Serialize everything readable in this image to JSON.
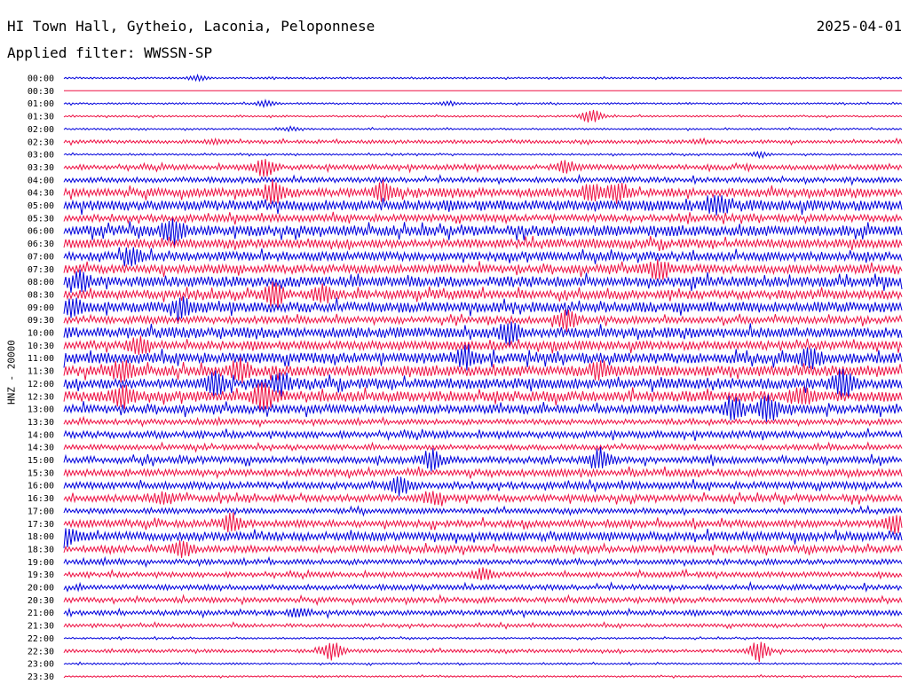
{
  "header": {
    "station": "HI Town Hall, Gytheio, Laconia, Peloponnese",
    "filter": "Applied filter: WWSSN-SP",
    "date": "2025-04-01"
  },
  "chart_data": {
    "type": "line",
    "title": "HI Town Hall, Gytheio, Laconia, Peloponnese",
    "subtitle": "Applied filter: WWSSN-SP",
    "ylabel": "HNZ - 20000",
    "xlabel": "",
    "colors": [
      "#0000dd",
      "#ee1144"
    ],
    "rows": [
      {
        "label": "00:00",
        "amp": 1,
        "events": [
          [
            0.16,
            3
          ]
        ]
      },
      {
        "label": "00:30",
        "amp": 0,
        "events": []
      },
      {
        "label": "01:00",
        "amp": 1,
        "events": [
          [
            0.24,
            3
          ],
          [
            0.46,
            2
          ]
        ]
      },
      {
        "label": "01:30",
        "amp": 1,
        "events": [
          [
            0.63,
            9
          ]
        ]
      },
      {
        "label": "02:00",
        "amp": 1,
        "events": [
          [
            0.27,
            2
          ]
        ]
      },
      {
        "label": "02:30",
        "amp": 2,
        "events": [
          [
            0.18,
            2
          ],
          [
            0.76,
            2
          ]
        ]
      },
      {
        "label": "03:00",
        "amp": 1,
        "events": [
          [
            0.83,
            3
          ]
        ]
      },
      {
        "label": "03:30",
        "amp": 3,
        "events": [
          [
            0.24,
            10
          ],
          [
            0.6,
            7
          ]
        ]
      },
      {
        "label": "04:00",
        "amp": 3,
        "events": []
      },
      {
        "label": "04:30",
        "amp": 5,
        "events": [
          [
            0.25,
            12
          ],
          [
            0.38,
            10
          ],
          [
            0.63,
            8
          ],
          [
            0.66,
            9
          ]
        ]
      },
      {
        "label": "05:00",
        "amp": 6,
        "events": [
          [
            0.78,
            10
          ]
        ]
      },
      {
        "label": "05:30",
        "amp": 4,
        "events": []
      },
      {
        "label": "06:00",
        "amp": 6,
        "events": [
          [
            0.13,
            12
          ]
        ]
      },
      {
        "label": "06:30",
        "amp": 5,
        "events": []
      },
      {
        "label": "07:00",
        "amp": 5,
        "events": [
          [
            0.08,
            8
          ]
        ]
      },
      {
        "label": "07:30",
        "amp": 5,
        "events": [
          [
            0.71,
            11
          ]
        ]
      },
      {
        "label": "08:00",
        "amp": 6,
        "events": [
          [
            0.02,
            9
          ]
        ]
      },
      {
        "label": "08:30",
        "amp": 5,
        "events": [
          [
            0.25,
            13
          ],
          [
            0.31,
            8
          ]
        ]
      },
      {
        "label": "09:00",
        "amp": 6,
        "events": [
          [
            0.01,
            9
          ],
          [
            0.14,
            10
          ]
        ]
      },
      {
        "label": "09:30",
        "amp": 4,
        "events": [
          [
            0.6,
            11
          ]
        ]
      },
      {
        "label": "10:00",
        "amp": 6,
        "events": [
          [
            0.53,
            12
          ]
        ]
      },
      {
        "label": "10:30",
        "amp": 5,
        "events": [
          [
            0.09,
            8
          ]
        ]
      },
      {
        "label": "11:00",
        "amp": 6,
        "events": [
          [
            0.48,
            11
          ],
          [
            0.89,
            10
          ]
        ]
      },
      {
        "label": "11:30",
        "amp": 6,
        "events": [
          [
            0.07,
            10
          ],
          [
            0.21,
            12
          ],
          [
            0.64,
            9
          ]
        ]
      },
      {
        "label": "12:00",
        "amp": 6,
        "events": [
          [
            0.18,
            12
          ],
          [
            0.26,
            10
          ],
          [
            0.93,
            14
          ]
        ]
      },
      {
        "label": "12:30",
        "amp": 6,
        "events": [
          [
            0.07,
            11
          ],
          [
            0.24,
            16
          ],
          [
            0.88,
            10
          ]
        ]
      },
      {
        "label": "13:00",
        "amp": 5,
        "events": [
          [
            0.8,
            11
          ],
          [
            0.84,
            14
          ]
        ]
      },
      {
        "label": "13:30",
        "amp": 3,
        "events": []
      },
      {
        "label": "14:00",
        "amp": 4,
        "events": []
      },
      {
        "label": "14:30",
        "amp": 3,
        "events": []
      },
      {
        "label": "15:00",
        "amp": 4,
        "events": [
          [
            0.44,
            12
          ],
          [
            0.64,
            11
          ]
        ]
      },
      {
        "label": "15:30",
        "amp": 4,
        "events": []
      },
      {
        "label": "16:00",
        "amp": 4,
        "events": [
          [
            0.4,
            9
          ]
        ]
      },
      {
        "label": "16:30",
        "amp": 4,
        "events": [
          [
            0.12,
            6
          ],
          [
            0.44,
            7
          ]
        ]
      },
      {
        "label": "17:00",
        "amp": 3,
        "events": []
      },
      {
        "label": "17:30",
        "amp": 4,
        "events": [
          [
            0.2,
            11
          ],
          [
            0.99,
            10
          ]
        ]
      },
      {
        "label": "18:00",
        "amp": 5,
        "events": [
          [
            0.0,
            13
          ]
        ]
      },
      {
        "label": "18:30",
        "amp": 4,
        "events": [
          [
            0.14,
            8
          ]
        ]
      },
      {
        "label": "19:00",
        "amp": 3,
        "events": []
      },
      {
        "label": "19:30",
        "amp": 3,
        "events": [
          [
            0.5,
            7
          ]
        ]
      },
      {
        "label": "20:00",
        "amp": 3,
        "events": []
      },
      {
        "label": "20:30",
        "amp": 3,
        "events": []
      },
      {
        "label": "21:00",
        "amp": 3,
        "events": [
          [
            0.28,
            5
          ]
        ]
      },
      {
        "label": "21:30",
        "amp": 2,
        "events": []
      },
      {
        "label": "22:00",
        "amp": 1,
        "events": []
      },
      {
        "label": "22:30",
        "amp": 2,
        "events": [
          [
            0.32,
            10
          ],
          [
            0.83,
            11
          ]
        ]
      },
      {
        "label": "23:00",
        "amp": 1,
        "events": []
      },
      {
        "label": "23:30",
        "amp": 1,
        "events": []
      }
    ]
  }
}
